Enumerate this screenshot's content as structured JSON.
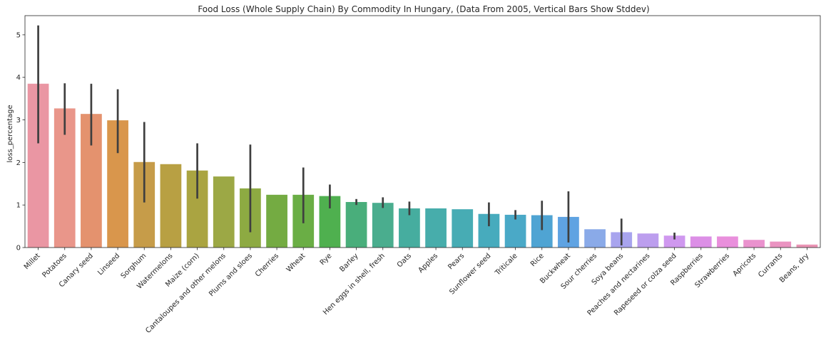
{
  "chart_data": {
    "type": "bar",
    "title": "Food Loss (Whole Supply Chain) By Commodity In Hungary, (Data From 2005, Vertical Bars Show Stddev)",
    "xlabel": "",
    "ylabel": "loss_percentage",
    "ylim": [
      0,
      5.45
    ],
    "yticks": [
      0,
      1,
      2,
      3,
      4,
      5
    ],
    "grid": false,
    "legend": "none",
    "categories": [
      "Millet",
      "Potatoes",
      "Canary seed",
      "Linseed",
      "Sorghum",
      "Watermelons",
      "Maize (corn)",
      "Cantaloupes and other melons",
      "Plums and sloes",
      "Cherries",
      "Wheat",
      "Rye",
      "Barley",
      "Hen eggs in shell, fresh",
      "Oats",
      "Apples",
      "Pears",
      "Sunflower seed",
      "Triticale",
      "Rice",
      "Buckwheat",
      "Sour cherries",
      "Soya beans",
      "Peaches and nectarines",
      "Rapeseed or colza seed",
      "Raspberries",
      "Strawberries",
      "Apricots",
      "Currants",
      "Beans, dry"
    ],
    "values": [
      3.85,
      3.27,
      3.14,
      2.99,
      2.01,
      1.96,
      1.81,
      1.67,
      1.39,
      1.24,
      1.24,
      1.21,
      1.07,
      1.05,
      0.92,
      0.92,
      0.9,
      0.79,
      0.77,
      0.76,
      0.72,
      0.43,
      0.36,
      0.33,
      0.28,
      0.26,
      0.26,
      0.18,
      0.14,
      0.07
    ],
    "error_low": [
      2.45,
      2.65,
      2.4,
      2.22,
      1.06,
      null,
      1.15,
      null,
      0.36,
      null,
      0.57,
      0.92,
      1.0,
      0.93,
      0.76,
      null,
      null,
      0.5,
      0.66,
      0.41,
      0.12,
      null,
      0.05,
      null,
      0.19,
      null,
      null,
      null,
      null,
      null
    ],
    "error_high": [
      5.22,
      3.86,
      3.85,
      3.72,
      2.95,
      null,
      2.45,
      null,
      2.42,
      null,
      1.88,
      1.48,
      1.14,
      1.18,
      1.08,
      null,
      null,
      1.06,
      0.88,
      1.1,
      1.32,
      null,
      0.68,
      null,
      0.35,
      null,
      null,
      null,
      null,
      null
    ],
    "colors": [
      "#ea96a3",
      "#e9968a",
      "#e4926e",
      "#d9964c",
      "#c69c49",
      "#b8a043",
      "#aaa441",
      "#9ca845",
      "#8daa42",
      "#74ab42",
      "#6aae45",
      "#4fb04f",
      "#49ae7b",
      "#4aad8e",
      "#46ad9f",
      "#47adab",
      "#47acb4",
      "#47abbd",
      "#4aa9c7",
      "#4fa4d3",
      "#5fa3e2",
      "#8aaae8",
      "#a8a4ee",
      "#bc9eee",
      "#cf98ef",
      "#dc8fe6",
      "#e98fdc",
      "#ea92ce",
      "#ea93c1",
      "#ea94b4"
    ]
  }
}
